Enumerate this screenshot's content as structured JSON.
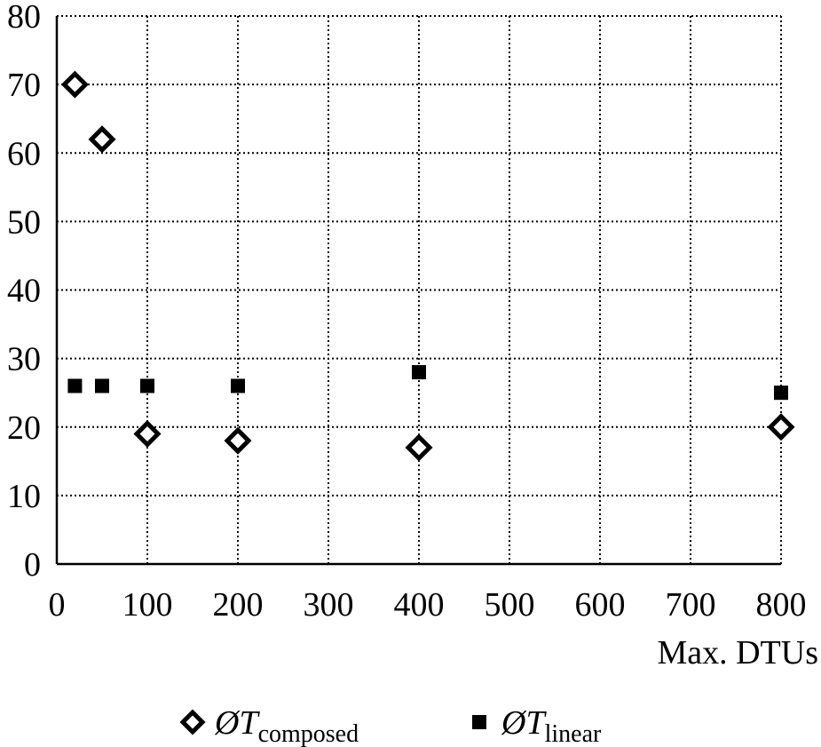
{
  "chart_data": {
    "type": "scatter",
    "xlabel": "Max. DTUs",
    "ylabel": "",
    "xlim": [
      0,
      800
    ],
    "ylim": [
      0,
      80
    ],
    "x_ticks": [
      "0",
      "100",
      "200",
      "300",
      "400",
      "500",
      "600",
      "700",
      "800"
    ],
    "y_ticks": [
      "0",
      "10",
      "20",
      "30",
      "40",
      "50",
      "60",
      "70",
      "80"
    ],
    "grid": true,
    "grid_style": "dotted",
    "legend_position": "bottom",
    "series": [
      {
        "name": "ØTcomposed",
        "legend_main": "ØT",
        "legend_sub": "composed",
        "marker": "hollow-diamond",
        "color": "#000000",
        "points": [
          {
            "x": 20,
            "y": 70
          },
          {
            "x": 50,
            "y": 62
          },
          {
            "x": 100,
            "y": 19
          },
          {
            "x": 200,
            "y": 18
          },
          {
            "x": 400,
            "y": 17
          },
          {
            "x": 800,
            "y": 20
          }
        ]
      },
      {
        "name": "ØTlinear",
        "legend_main": "ØT",
        "legend_sub": "linear",
        "marker": "filled-square",
        "color": "#000000",
        "points": [
          {
            "x": 20,
            "y": 26
          },
          {
            "x": 50,
            "y": 26
          },
          {
            "x": 100,
            "y": 26
          },
          {
            "x": 200,
            "y": 26
          },
          {
            "x": 400,
            "y": 28
          },
          {
            "x": 800,
            "y": 25
          }
        ]
      }
    ]
  }
}
